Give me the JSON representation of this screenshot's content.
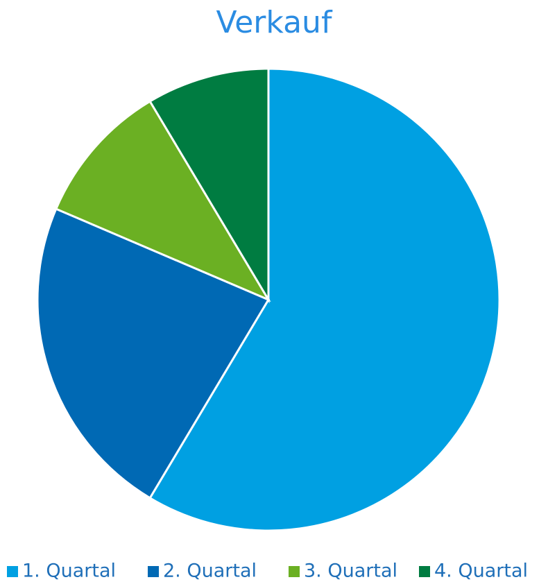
{
  "chart_data": {
    "type": "pie",
    "title": "Verkauf",
    "categories": [
      "1. Quartal",
      "2. Quartal",
      "3. Quartal",
      "4. Quartal"
    ],
    "values": [
      8.2,
      3.2,
      1.4,
      1.2
    ],
    "colors": [
      "#00a0e2",
      "#0069b4",
      "#6bb023",
      "#007c41"
    ],
    "legend": "bottom"
  }
}
